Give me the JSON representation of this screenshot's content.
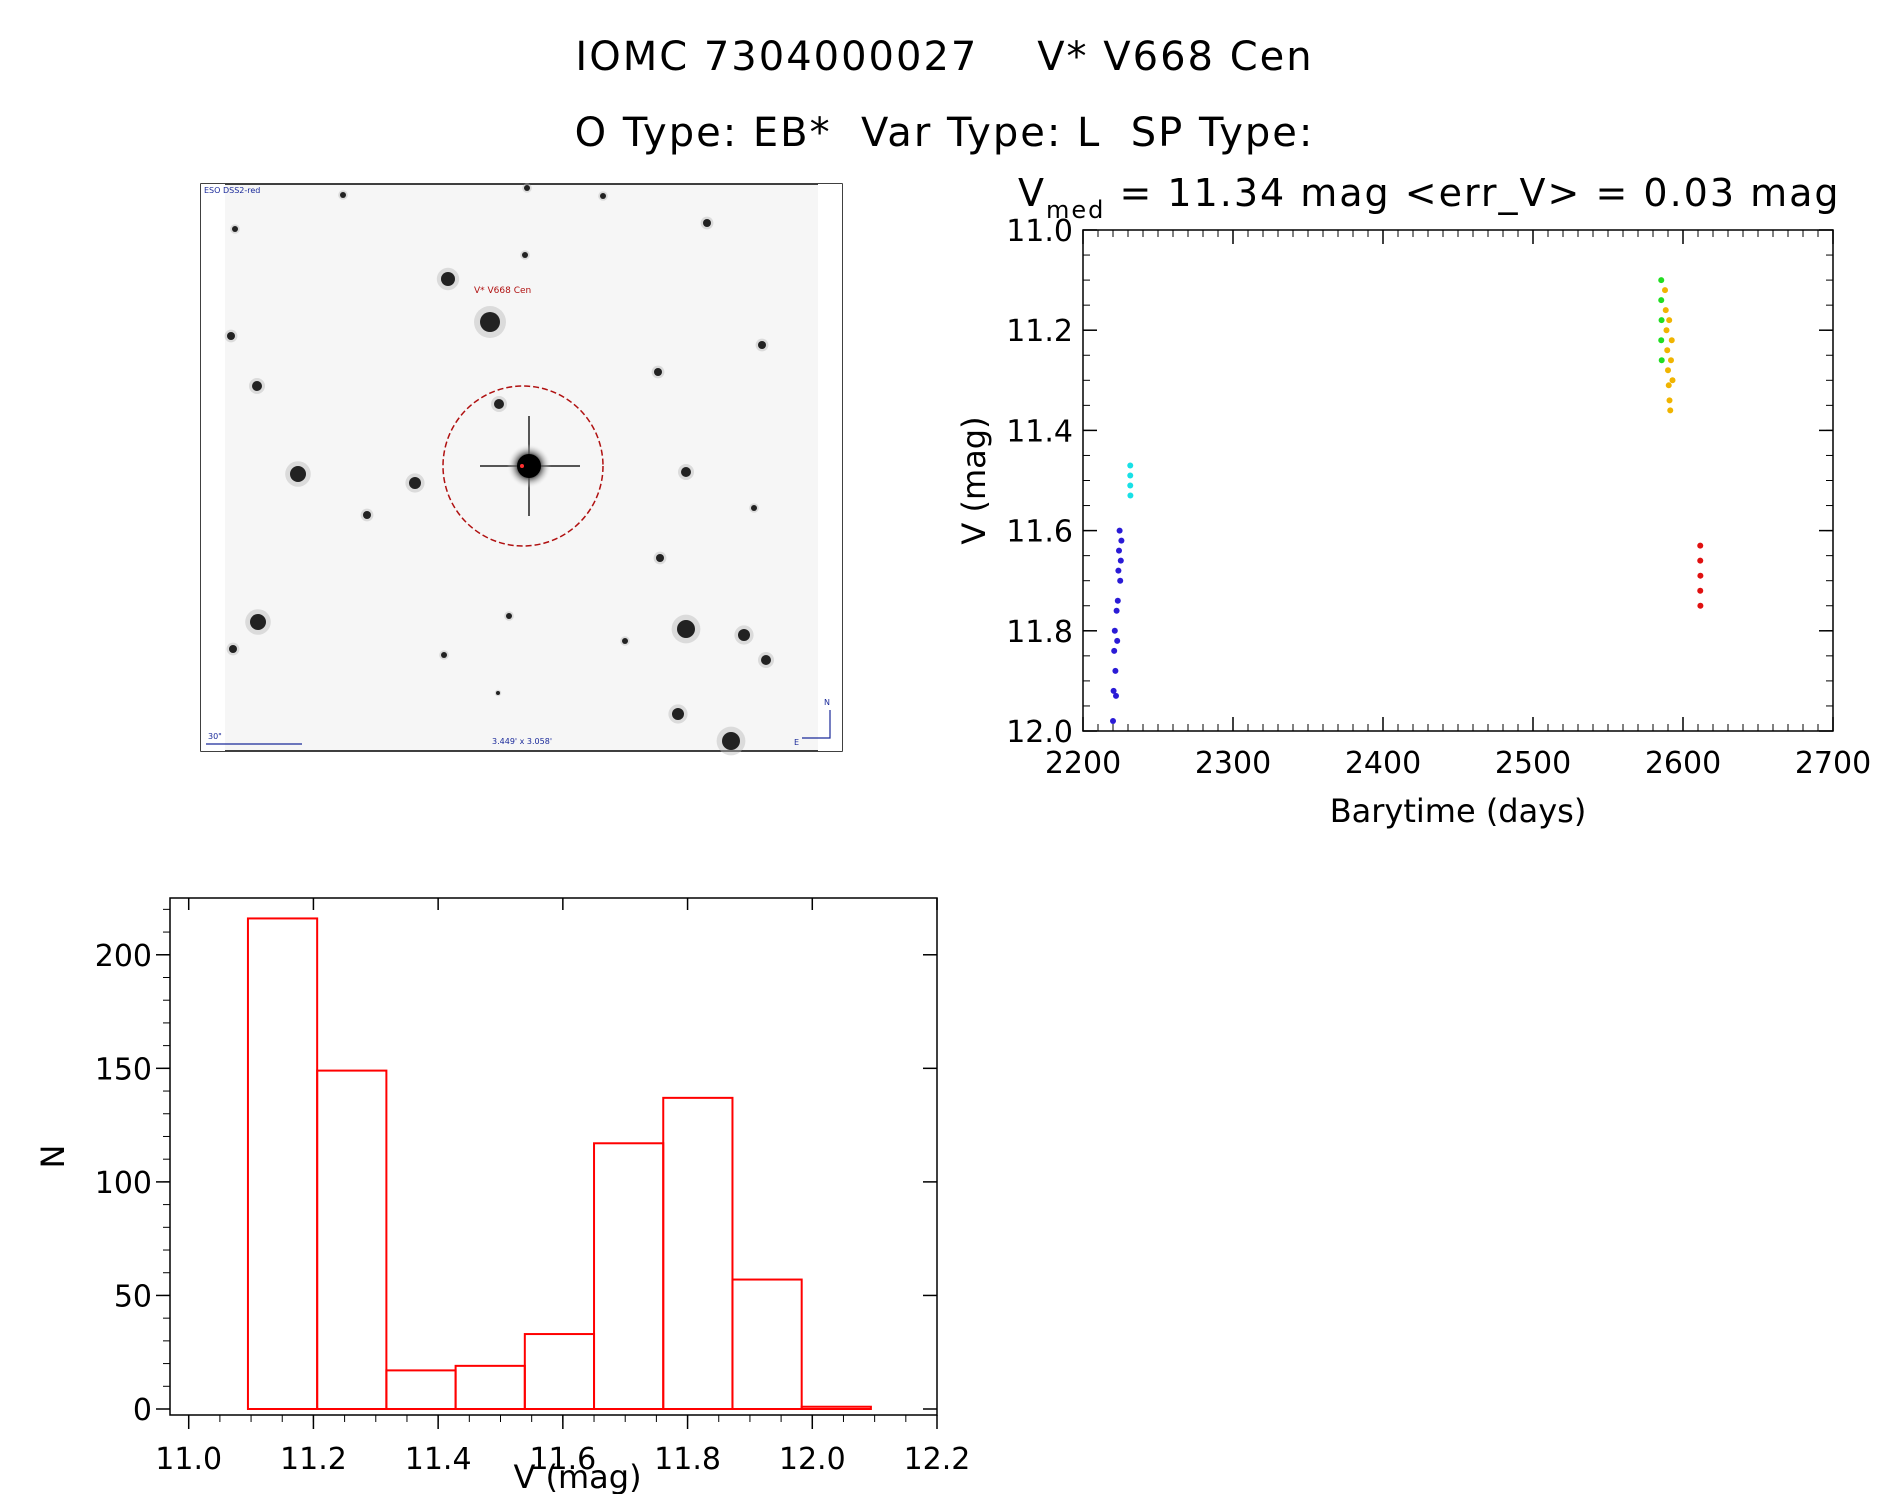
{
  "header": {
    "title_line1": "IOMC 7304000027    V* V668 Cen",
    "title_line2": "O Type: EB*  Var Type: L  SP Type:"
  },
  "image_panel": {
    "survey_label": "ESO DSS2-red",
    "object_label": "V* V668 Cen",
    "scale_label": "30\"",
    "size_label": "3.449' x 3.058'",
    "north_label": "N",
    "east_label": "E"
  },
  "colors": {
    "hist_red": "#ff0000",
    "series_blue": "#2a1bd6",
    "series_cyan": "#18e0e6",
    "series_green": "#22dd22",
    "series_orange": "#f0b400",
    "series_red": "#e01010",
    "marker_red": "#b01010"
  },
  "chart_data": [
    {
      "type": "scatter",
      "title_v": "V",
      "title_sub": "med",
      "title_rest": " = 11.34 mag <err_V> = 0.03 mag",
      "xlabel": "Barytime (days)",
      "ylabel": "V (mag)",
      "xlim": [
        2200,
        2700
      ],
      "ylim": [
        12.0,
        11.0
      ],
      "y_inverted": true,
      "xticks": [
        "2200",
        "2300",
        "2400",
        "2500",
        "2600",
        "2700"
      ],
      "yticks": [
        "11.0",
        "11.2",
        "11.4",
        "11.6",
        "11.8",
        "12.0"
      ],
      "series": [
        {
          "color": "#2a1bd6",
          "points": [
            [
              2220,
              11.98
            ],
            [
              2220.4,
              11.92
            ],
            [
              2220.8,
              11.84
            ],
            [
              2221.2,
              11.8
            ],
            [
              2221.6,
              11.88
            ],
            [
              2222,
              11.93
            ],
            [
              2222.4,
              11.76
            ],
            [
              2222.8,
              11.82
            ],
            [
              2223.2,
              11.74
            ],
            [
              2223.6,
              11.68
            ],
            [
              2224,
              11.64
            ],
            [
              2224.4,
              11.6
            ],
            [
              2224.8,
              11.7
            ],
            [
              2225.2,
              11.66
            ],
            [
              2225.6,
              11.62
            ]
          ]
        },
        {
          "color": "#18e0e6",
          "points": [
            [
              2231.5,
              11.47
            ],
            [
              2231.5,
              11.49
            ],
            [
              2231.5,
              11.51
            ],
            [
              2231.6,
              11.53
            ]
          ]
        },
        {
          "color": "#22dd22",
          "points": [
            [
              2585.5,
              11.1
            ],
            [
              2585.5,
              11.14
            ],
            [
              2585.7,
              11.18
            ],
            [
              2585.5,
              11.22
            ],
            [
              2585.8,
              11.26
            ]
          ]
        },
        {
          "color": "#f0b400",
          "points": [
            [
              2588,
              11.12
            ],
            [
              2588.5,
              11.16
            ],
            [
              2589,
              11.2
            ],
            [
              2589.5,
              11.24
            ],
            [
              2590,
              11.28
            ],
            [
              2590.5,
              11.31
            ],
            [
              2591,
              11.34
            ],
            [
              2591.5,
              11.36
            ],
            [
              2592,
              11.26
            ],
            [
              2592.5,
              11.22
            ],
            [
              2593,
              11.3
            ],
            [
              2590.8,
              11.18
            ]
          ]
        },
        {
          "color": "#e01010",
          "points": [
            [
              2611.5,
              11.63
            ],
            [
              2611.5,
              11.66
            ],
            [
              2611.6,
              11.69
            ],
            [
              2611.5,
              11.72
            ],
            [
              2611.6,
              11.75
            ]
          ]
        }
      ]
    },
    {
      "type": "bar",
      "xlabel": "V (mag)",
      "ylabel": "N",
      "xlim": [
        10.97,
        12.2
      ],
      "ylim": [
        0,
        225
      ],
      "xticks": [
        "11.0",
        "11.2",
        "11.4",
        "11.6",
        "11.8",
        "12.0",
        "12.2"
      ],
      "yticks": [
        "0",
        "50",
        "100",
        "150",
        "200"
      ],
      "bin_edges": [
        11.095,
        11.206,
        11.317,
        11.428,
        11.539,
        11.65,
        11.761,
        11.872,
        11.983,
        12.094
      ],
      "values": [
        216,
        149,
        17,
        19,
        33,
        117,
        137,
        57,
        1
      ]
    }
  ]
}
